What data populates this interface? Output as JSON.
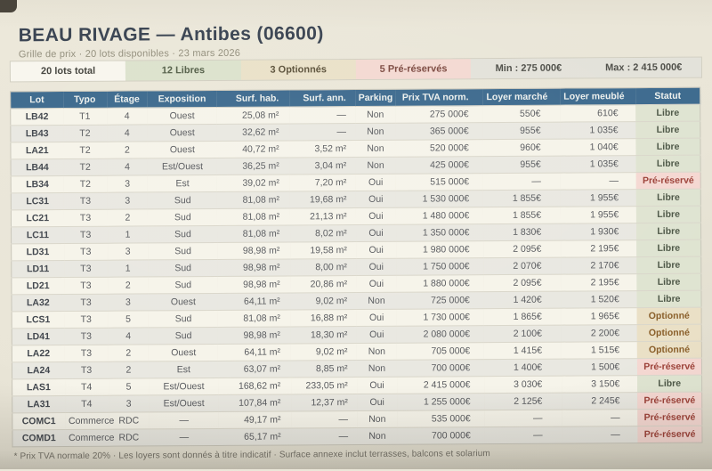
{
  "header": {
    "title": "BEAU RIVAGE — Antibes (06600)",
    "subtitle": "Grille de prix · 20 lots disponibles · 23 mars 2026"
  },
  "summary": {
    "chips": [
      {
        "label": "20 lots total",
        "type": "total"
      },
      {
        "label": "12 Libres",
        "type": "libre"
      },
      {
        "label": "3 Optionnés",
        "type": "optionne"
      },
      {
        "label": "5 Pré-réservés",
        "type": "prereserve"
      },
      {
        "label": "Min : 275 000€",
        "type": "stat"
      },
      {
        "label": "Max : 2 415 000€",
        "type": "stat"
      }
    ]
  },
  "table": {
    "columns": [
      {
        "key": "lot",
        "label": "Lot"
      },
      {
        "key": "typo",
        "label": "Typo"
      },
      {
        "key": "etage",
        "label": "Étage"
      },
      {
        "key": "exposition",
        "label": "Exposition"
      },
      {
        "key": "surf_hab",
        "label": "Surf. hab."
      },
      {
        "key": "surf_ann",
        "label": "Surf. ann."
      },
      {
        "key": "parking",
        "label": "Parking"
      },
      {
        "key": "prix",
        "label": "Prix TVA norm."
      },
      {
        "key": "loyer_marche",
        "label": "Loyer marché"
      },
      {
        "key": "loyer_meuble",
        "label": "Loyer meublé"
      },
      {
        "key": "statut",
        "label": "Statut"
      }
    ],
    "rows": [
      {
        "lot": "LB42",
        "typo": "T1",
        "etage": "4",
        "exposition": "Ouest",
        "surf_hab": "25,08 m²",
        "surf_ann": "—",
        "parking": "Non",
        "prix": "275 000€",
        "loyer_marche": "550€",
        "loyer_meuble": "610€",
        "statut": "Libre"
      },
      {
        "lot": "LB43",
        "typo": "T2",
        "etage": "4",
        "exposition": "Ouest",
        "surf_hab": "32,62 m²",
        "surf_ann": "—",
        "parking": "Non",
        "prix": "365 000€",
        "loyer_marche": "955€",
        "loyer_meuble": "1 035€",
        "statut": "Libre"
      },
      {
        "lot": "LA21",
        "typo": "T2",
        "etage": "2",
        "exposition": "Ouest",
        "surf_hab": "40,72 m²",
        "surf_ann": "3,52 m²",
        "parking": "Non",
        "prix": "520 000€",
        "loyer_marche": "960€",
        "loyer_meuble": "1 040€",
        "statut": "Libre"
      },
      {
        "lot": "LB44",
        "typo": "T2",
        "etage": "4",
        "exposition": "Est/Ouest",
        "surf_hab": "36,25 m²",
        "surf_ann": "3,04 m²",
        "parking": "Non",
        "prix": "425 000€",
        "loyer_marche": "955€",
        "loyer_meuble": "1 035€",
        "statut": "Libre"
      },
      {
        "lot": "LB34",
        "typo": "T2",
        "etage": "3",
        "exposition": "Est",
        "surf_hab": "39,02 m²",
        "surf_ann": "7,20 m²",
        "parking": "Oui",
        "prix": "515 000€",
        "loyer_marche": "—",
        "loyer_meuble": "—",
        "statut": "Pré-réservé"
      },
      {
        "lot": "LC31",
        "typo": "T3",
        "etage": "3",
        "exposition": "Sud",
        "surf_hab": "81,08 m²",
        "surf_ann": "19,68 m²",
        "parking": "Oui",
        "prix": "1 530 000€",
        "loyer_marche": "1 855€",
        "loyer_meuble": "1 955€",
        "statut": "Libre"
      },
      {
        "lot": "LC21",
        "typo": "T3",
        "etage": "2",
        "exposition": "Sud",
        "surf_hab": "81,08 m²",
        "surf_ann": "21,13 m²",
        "parking": "Oui",
        "prix": "1 480 000€",
        "loyer_marche": "1 855€",
        "loyer_meuble": "1 955€",
        "statut": "Libre"
      },
      {
        "lot": "LC11",
        "typo": "T3",
        "etage": "1",
        "exposition": "Sud",
        "surf_hab": "81,08 m²",
        "surf_ann": "8,02 m²",
        "parking": "Oui",
        "prix": "1 350 000€",
        "loyer_marche": "1 830€",
        "loyer_meuble": "1 930€",
        "statut": "Libre"
      },
      {
        "lot": "LD31",
        "typo": "T3",
        "etage": "3",
        "exposition": "Sud",
        "surf_hab": "98,98 m²",
        "surf_ann": "19,58 m²",
        "parking": "Oui",
        "prix": "1 980 000€",
        "loyer_marche": "2 095€",
        "loyer_meuble": "2 195€",
        "statut": "Libre"
      },
      {
        "lot": "LD11",
        "typo": "T3",
        "etage": "1",
        "exposition": "Sud",
        "surf_hab": "98,98 m²",
        "surf_ann": "8,00 m²",
        "parking": "Oui",
        "prix": "1 750 000€",
        "loyer_marche": "2 070€",
        "loyer_meuble": "2 170€",
        "statut": "Libre"
      },
      {
        "lot": "LD21",
        "typo": "T3",
        "etage": "2",
        "exposition": "Sud",
        "surf_hab": "98,98 m²",
        "surf_ann": "20,86 m²",
        "parking": "Oui",
        "prix": "1 880 000€",
        "loyer_marche": "2 095€",
        "loyer_meuble": "2 195€",
        "statut": "Libre"
      },
      {
        "lot": "LA32",
        "typo": "T3",
        "etage": "3",
        "exposition": "Ouest",
        "surf_hab": "64,11 m²",
        "surf_ann": "9,02 m²",
        "parking": "Non",
        "prix": "725 000€",
        "loyer_marche": "1 420€",
        "loyer_meuble": "1 520€",
        "statut": "Libre"
      },
      {
        "lot": "LCS1",
        "typo": "T3",
        "etage": "5",
        "exposition": "Sud",
        "surf_hab": "81,08 m²",
        "surf_ann": "16,88 m²",
        "parking": "Oui",
        "prix": "1 730 000€",
        "loyer_marche": "1 865€",
        "loyer_meuble": "1 965€",
        "statut": "Optionné"
      },
      {
        "lot": "LD41",
        "typo": "T3",
        "etage": "4",
        "exposition": "Sud",
        "surf_hab": "98,98 m²",
        "surf_ann": "18,30 m²",
        "parking": "Oui",
        "prix": "2 080 000€",
        "loyer_marche": "2 100€",
        "loyer_meuble": "2 200€",
        "statut": "Optionné"
      },
      {
        "lot": "LA22",
        "typo": "T3",
        "etage": "2",
        "exposition": "Ouest",
        "surf_hab": "64,11 m²",
        "surf_ann": "9,02 m²",
        "parking": "Non",
        "prix": "705 000€",
        "loyer_marche": "1 415€",
        "loyer_meuble": "1 515€",
        "statut": "Optionné"
      },
      {
        "lot": "LA24",
        "typo": "T3",
        "etage": "2",
        "exposition": "Est",
        "surf_hab": "63,07 m²",
        "surf_ann": "8,85 m²",
        "parking": "Non",
        "prix": "700 000€",
        "loyer_marche": "1 400€",
        "loyer_meuble": "1 500€",
        "statut": "Pré-réservé"
      },
      {
        "lot": "LAS1",
        "typo": "T4",
        "etage": "5",
        "exposition": "Est/Ouest",
        "surf_hab": "168,62 m²",
        "surf_ann": "233,05 m²",
        "parking": "Oui",
        "prix": "2 415 000€",
        "loyer_marche": "3 030€",
        "loyer_meuble": "3 150€",
        "statut": "Libre"
      },
      {
        "lot": "LA31",
        "typo": "T4",
        "etage": "3",
        "exposition": "Est/Ouest",
        "surf_hab": "107,84 m²",
        "surf_ann": "12,37 m²",
        "parking": "Oui",
        "prix": "1 255 000€",
        "loyer_marche": "2 125€",
        "loyer_meuble": "2 245€",
        "statut": "Pré-réservé"
      },
      {
        "lot": "COMC1",
        "typo": "Commerce",
        "etage": "RDC",
        "exposition": "—",
        "surf_hab": "49,17 m²",
        "surf_ann": "—",
        "parking": "Non",
        "prix": "535 000€",
        "loyer_marche": "—",
        "loyer_meuble": "—",
        "statut": "Pré-réservé"
      },
      {
        "lot": "COMD1",
        "typo": "Commerce",
        "etage": "RDC",
        "exposition": "—",
        "surf_hab": "65,17 m²",
        "surf_ann": "—",
        "parking": "Non",
        "prix": "700 000€",
        "loyer_marche": "—",
        "loyer_meuble": "—",
        "statut": "Pré-réservé"
      }
    ]
  },
  "footer": {
    "note": "* Prix TVA normale 20% · Les loyers sont donnés à titre indicatif · Surface annexe inclut terrasses, balcons et solarium"
  },
  "colors": {
    "paper": "#e9e5d8",
    "table_header_bg": "#3d6a8e",
    "status_libre_bg": "#dfe4d1",
    "status_libre_text": "#4c5646",
    "status_optionne_bg": "#eae0c6",
    "status_optionne_text": "#8a5f2a",
    "status_prereserve_bg": "#f5d8d2",
    "status_prereserve_text": "#9c4138"
  }
}
